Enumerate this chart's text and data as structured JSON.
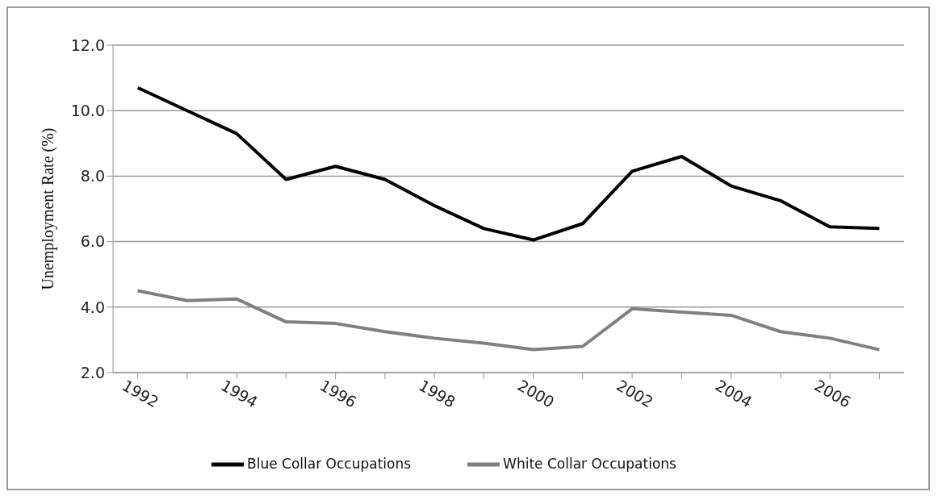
{
  "chart_data": {
    "type": "line",
    "ylabel": "Unemployment Rate (%)",
    "categories": [
      "1992",
      null,
      "1994",
      null,
      "1996",
      null,
      "1998",
      null,
      "2000",
      null,
      "2002",
      null,
      "2004",
      null,
      "2006",
      null
    ],
    "series": [
      {
        "name": "Blue Collar Occupations",
        "color": "#000000",
        "values": [
          10.7,
          10.0,
          9.3,
          7.9,
          8.3,
          7.9,
          7.1,
          6.4,
          6.05,
          6.55,
          8.15,
          8.6,
          7.7,
          7.25,
          6.45,
          6.4
        ]
      },
      {
        "name": "White Collar Occupations",
        "color": "#808080",
        "values": [
          4.5,
          4.2,
          4.25,
          3.55,
          3.5,
          3.25,
          3.05,
          2.9,
          2.7,
          2.8,
          3.95,
          3.85,
          3.75,
          3.25,
          3.05,
          2.7
        ]
      }
    ],
    "ylim": [
      2,
      12
    ],
    "yticks": [
      {
        "value": 2,
        "label": "2.0"
      },
      {
        "value": 4,
        "label": "4.0"
      },
      {
        "value": 6,
        "label": "6.0"
      },
      {
        "value": 8,
        "label": "8.0"
      },
      {
        "value": 10,
        "label": "10.0"
      },
      {
        "value": 12,
        "label": "12.0"
      }
    ],
    "grid": "y",
    "legend": "bottom",
    "marker": "none",
    "line_style": "solid"
  }
}
